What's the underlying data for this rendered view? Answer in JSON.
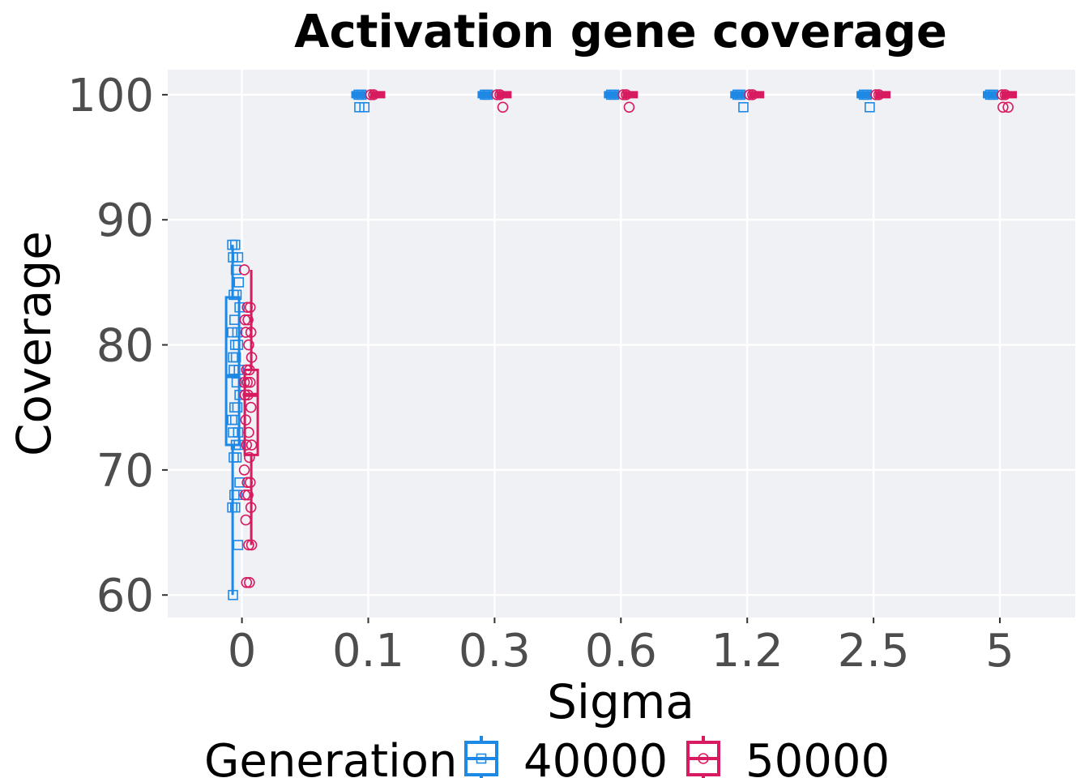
{
  "chart_data": {
    "type": "box",
    "title": "Activation gene coverage",
    "xlabel": "Sigma",
    "ylabel": "Coverage",
    "categories": [
      "0",
      "0.1",
      "0.3",
      "0.6",
      "1.2",
      "2.5",
      "5"
    ],
    "ylim": [
      58.2,
      102
    ],
    "yticks": [
      60,
      70,
      80,
      90,
      100
    ],
    "grid": true,
    "legend": {
      "title": "Generation",
      "position": "bottom"
    },
    "series": [
      {
        "name": "40000",
        "color": "#1e88e5",
        "marker": "square",
        "boxes": [
          {
            "min": 60,
            "q1": 72,
            "median": 77.5,
            "q3": 83.8,
            "max": 88,
            "points": [
              88,
              88,
              87,
              87,
              86,
              85,
              84,
              84,
              83,
              82,
              81,
              81,
              80,
              80,
              79,
              79,
              78,
              78,
              77,
              76,
              75,
              75,
              74,
              74,
              73,
              73,
              72,
              72,
              71,
              71,
              69,
              68,
              68,
              67,
              67,
              64,
              60
            ]
          },
          {
            "min": 100,
            "q1": 100,
            "median": 100,
            "q3": 100,
            "max": 100,
            "points": [
              100,
              100,
              99,
              99
            ]
          },
          {
            "min": 100,
            "q1": 100,
            "median": 100,
            "q3": 100,
            "max": 100,
            "points": [
              100,
              100
            ]
          },
          {
            "min": 100,
            "q1": 100,
            "median": 100,
            "q3": 100,
            "max": 100,
            "points": [
              100,
              100
            ]
          },
          {
            "min": 100,
            "q1": 100,
            "median": 100,
            "q3": 100,
            "max": 100,
            "points": [
              100,
              100,
              99
            ]
          },
          {
            "min": 100,
            "q1": 100,
            "median": 100,
            "q3": 100,
            "max": 100,
            "points": [
              100,
              100,
              99
            ]
          },
          {
            "min": 100,
            "q1": 100,
            "median": 100,
            "q3": 100,
            "max": 100,
            "points": [
              100,
              100
            ]
          }
        ]
      },
      {
        "name": "50000",
        "color": "#d81b60",
        "marker": "circle",
        "boxes": [
          {
            "min": 64,
            "q1": 71.2,
            "median": 76,
            "q3": 78,
            "max": 86,
            "points": [
              86,
              83,
              83,
              82,
              82,
              81,
              81,
              80,
              79,
              78,
              78,
              77,
              77,
              77,
              76,
              76,
              75,
              74,
              73,
              72,
              72,
              71,
              70,
              69,
              69,
              68,
              68,
              67,
              66,
              64,
              64,
              61,
              61
            ]
          },
          {
            "min": 100,
            "q1": 100,
            "median": 100,
            "q3": 100,
            "max": 100,
            "points": [
              100,
              100
            ]
          },
          {
            "min": 100,
            "q1": 100,
            "median": 100,
            "q3": 100,
            "max": 100,
            "points": [
              100,
              100,
              99
            ]
          },
          {
            "min": 100,
            "q1": 100,
            "median": 100,
            "q3": 100,
            "max": 100,
            "points": [
              100,
              100,
              99
            ]
          },
          {
            "min": 100,
            "q1": 100,
            "median": 100,
            "q3": 100,
            "max": 100,
            "points": [
              100,
              100
            ]
          },
          {
            "min": 100,
            "q1": 100,
            "median": 100,
            "q3": 100,
            "max": 100,
            "points": [
              100,
              100
            ]
          },
          {
            "min": 100,
            "q1": 100,
            "median": 100,
            "q3": 100,
            "max": 100,
            "points": [
              100,
              100,
              99,
              99
            ]
          }
        ]
      }
    ]
  }
}
